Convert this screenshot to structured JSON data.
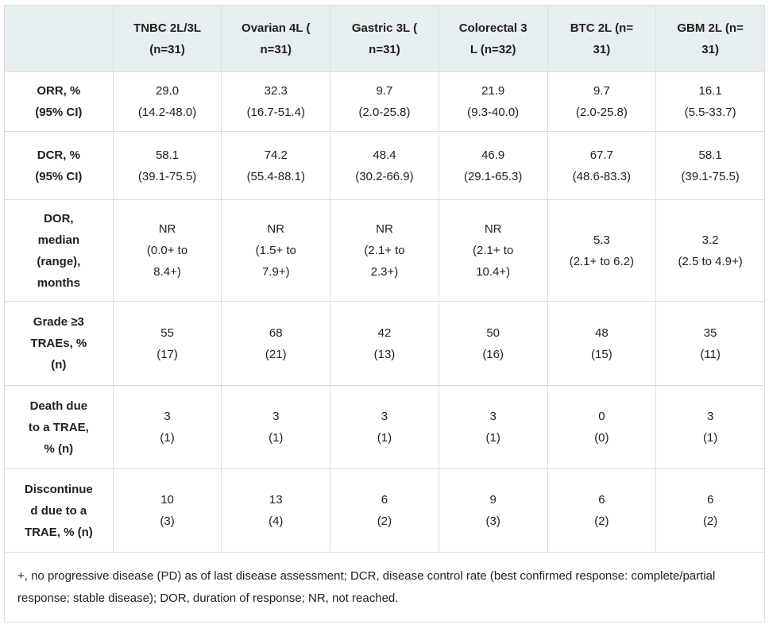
{
  "colors": {
    "header_background": "#e6eef0",
    "cell_border": "#d9dee1",
    "text": "#1f1f1f",
    "body_background": "#ffffff"
  },
  "table": {
    "columns": [
      "",
      "TNBC 2L/3L\n(n=31)",
      "Ovarian 4L (\nn=31)",
      "Gastric 3L (\nn=31)",
      "Colorectal 3\nL (n=32)",
      "BTC 2L (n=\n31)",
      "GBM 2L (n=\n31)"
    ],
    "rows": [
      {
        "label": "ORR, %\n(95% CI)",
        "cells": [
          "29.0\n(14.2-48.0)",
          "32.3\n(16.7-51.4)",
          "9.7\n(2.0-25.8)",
          "21.9\n(9.3-40.0)",
          "9.7\n(2.0-25.8)",
          "16.1\n(5.5-33.7)"
        ]
      },
      {
        "label": "DCR, %\n(95% CI)",
        "cells": [
          "58.1\n(39.1-75.5)",
          "74.2\n(55.4-88.1)",
          "48.4\n(30.2-66.9)",
          "46.9\n(29.1-65.3)",
          "67.7\n(48.6-83.3)",
          "58.1\n(39.1-75.5)"
        ]
      },
      {
        "label": "DOR,\nmedian\n(range),\nmonths",
        "cells": [
          "NR\n(0.0+ to\n8.4+)",
          "NR\n(1.5+ to\n7.9+)",
          "NR\n(2.1+ to\n2.3+)",
          "NR\n(2.1+ to\n10.4+)",
          "5.3\n(2.1+ to 6.2)",
          "3.2\n(2.5 to 4.9+)"
        ]
      },
      {
        "label": "Grade ≥3\nTRAEs, %\n(n)",
        "cells": [
          "55\n(17)",
          "68\n(21)",
          "42\n(13)",
          "50\n(16)",
          "48\n(15)",
          "35\n(11)"
        ]
      },
      {
        "label": "Death due\nto a TRAE,\n% (n)",
        "cells": [
          "3\n(1)",
          "3\n(1)",
          "3\n(1)",
          "3\n(1)",
          "0\n(0)",
          "3\n(1)"
        ]
      },
      {
        "label": "Discontinue\nd due to a\nTRAE, % (n)",
        "cells": [
          "10\n(3)",
          "13\n(4)",
          "6\n(2)",
          "9\n(3)",
          "6\n(2)",
          "6\n(2)"
        ]
      }
    ],
    "footnote": "+, no progressive disease (PD) as of last disease assessment; DCR, disease control rate (best confirmed response: complete/partial response; stable disease); DOR, duration of response; NR, not reached."
  }
}
